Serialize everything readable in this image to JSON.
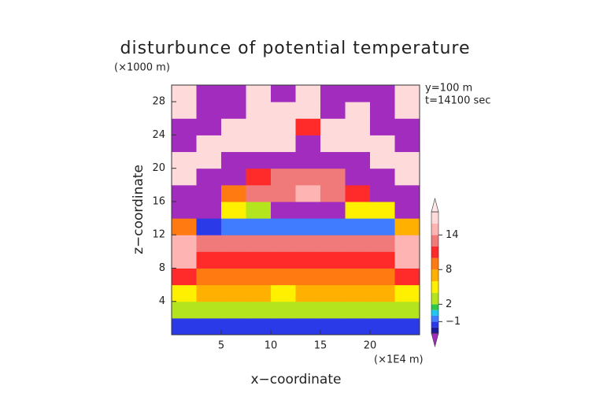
{
  "chart_data": {
    "type": "heatmap",
    "title": "disturbunce of potential temperature",
    "y_unit": "(×1000 m)",
    "x_unit": "(×1E4 m)",
    "x_label": "x−coordinate",
    "y_label": "z−coordinate",
    "annotations": [
      "y=100 m",
      "t=14100 sec"
    ],
    "xlim": [
      0,
      25
    ],
    "ylim": [
      0,
      30
    ],
    "xticks": [
      5,
      10,
      15,
      20
    ],
    "yticks": [
      4,
      8,
      12,
      16,
      20,
      24,
      28
    ],
    "x": [
      1.25,
      3.75,
      6.25,
      8.75,
      11.25,
      13.75,
      16.25,
      18.75,
      21.25,
      23.75
    ],
    "y": [
      1,
      3,
      5,
      7,
      9,
      11,
      13,
      15,
      17,
      19,
      21,
      23,
      25,
      27,
      29
    ],
    "z": [
      [
        -2,
        -2,
        -2,
        -2,
        -2,
        -2,
        -2,
        -2,
        -2,
        -2
      ],
      [
        3,
        2,
        2,
        3,
        2,
        2,
        3,
        2,
        2,
        3
      ],
      [
        5,
        6,
        6,
        6,
        5,
        6,
        6,
        6,
        6,
        5
      ],
      [
        10,
        9,
        8,
        8,
        8,
        8,
        8,
        8,
        9,
        10
      ],
      [
        14,
        11,
        10,
        10,
        10,
        10,
        10,
        10,
        11,
        14
      ],
      [
        15,
        12,
        12,
        12,
        12,
        12,
        12,
        12,
        12,
        15
      ],
      [
        8,
        -2,
        -1,
        -1,
        -1,
        -1,
        -1,
        -1,
        -1,
        6
      ],
      [
        -4,
        -4,
        4,
        3,
        -4,
        -4,
        -4,
        5,
        5,
        -4
      ],
      [
        -4,
        -4,
        8,
        12,
        13,
        14,
        13,
        10,
        -4,
        -4
      ],
      [
        16,
        -4,
        -4,
        10,
        13,
        12,
        12,
        -4,
        -4,
        16
      ],
      [
        17,
        17,
        -4,
        -4,
        -4,
        -4,
        -4,
        -4,
        17,
        17
      ],
      [
        -4,
        16,
        17,
        17,
        17,
        -4,
        17,
        17,
        16,
        -4
      ],
      [
        -4,
        -4,
        17,
        17,
        17,
        10,
        17,
        17,
        -4,
        -4
      ],
      [
        16,
        -4,
        -4,
        17,
        17,
        17,
        -4,
        17,
        -4,
        16
      ],
      [
        16,
        -4,
        -4,
        17,
        -4,
        17,
        -4,
        -4,
        -4,
        16
      ]
    ],
    "levels": [
      -3,
      -2,
      -1,
      0,
      1,
      2,
      4,
      6,
      8,
      10,
      12,
      14,
      16,
      18
    ],
    "colors": [
      "#1c1c9a",
      "#2a3ae8",
      "#3f7cff",
      "#22c4f0",
      "#2cc84a",
      "#b4e41e",
      "#fff000",
      "#ffb000",
      "#ff7a10",
      "#ff2a2a",
      "#f07a7a",
      "#ffb4b4",
      "#ffdada"
    ],
    "under_color": "#a22cbe",
    "over_color": "#ffe6e6",
    "colorbar_ticks": [
      {
        "value": -1,
        "label": "−1"
      },
      2,
      8,
      14
    ]
  }
}
